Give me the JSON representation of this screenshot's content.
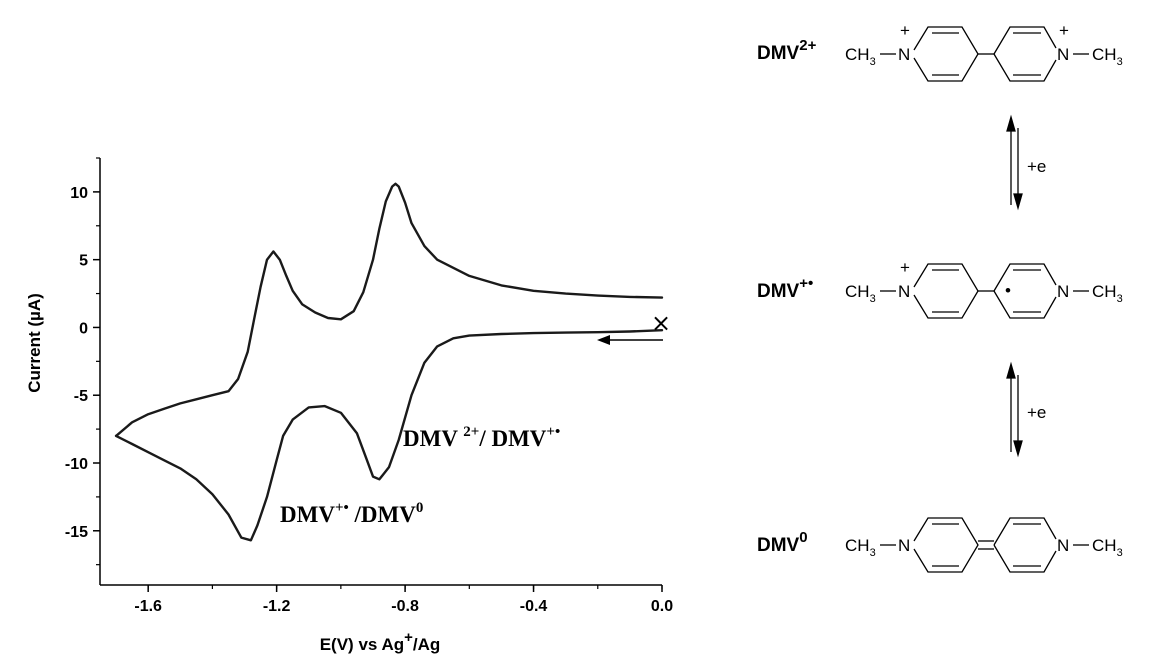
{
  "chart_data": {
    "type": "line",
    "xlabel": "E(V) vs Ag",
    "xlabel_sup": "+",
    "xlabel_tail": "/Ag",
    "ylabel": "Current (µA)",
    "xlim": [
      -1.75,
      0.0
    ],
    "ylim": [
      -19,
      12.5
    ],
    "x_ticks": [
      -1.6,
      -1.2,
      -0.8,
      -0.4,
      0.0
    ],
    "x_tick_labels": [
      "-1.6",
      "-1.2",
      "-0.8",
      "-0.4",
      "0.0"
    ],
    "y_ticks": [
      -15,
      -10,
      -5,
      0,
      5,
      10
    ],
    "y_tick_labels": [
      "-15",
      "-10",
      "-5",
      "0",
      "5",
      "10"
    ],
    "grid": false,
    "series": [
      {
        "x": [
          0.0,
          -0.1,
          -0.2,
          -0.3,
          -0.4,
          -0.5,
          -0.6,
          -0.65,
          -0.7,
          -0.74,
          -0.78,
          -0.82,
          -0.85,
          -0.88,
          -0.9,
          -0.92,
          -0.95,
          -1.0,
          -1.05,
          -1.1,
          -1.15,
          -1.18,
          -1.2,
          -1.23,
          -1.26,
          -1.28,
          -1.31,
          -1.35,
          -1.4,
          -1.45,
          -1.5,
          -1.55,
          -1.6,
          -1.65,
          -1.7
        ],
        "y": [
          -0.2,
          -0.3,
          -0.35,
          -0.38,
          -0.42,
          -0.48,
          -0.6,
          -0.8,
          -1.4,
          -2.6,
          -5.0,
          -8.3,
          -10.3,
          -11.2,
          -11.0,
          -9.7,
          -7.8,
          -6.3,
          -5.8,
          -5.9,
          -6.8,
          -8.0,
          -9.8,
          -12.5,
          -14.6,
          -15.7,
          -15.5,
          -13.8,
          -12.3,
          -11.2,
          -10.4,
          -9.8,
          -9.2,
          -8.6,
          -8.0
        ],
        "color": "#1a1a1a"
      },
      {
        "x": [
          -1.7,
          -1.65,
          -1.6,
          -1.55,
          -1.5,
          -1.45,
          -1.4,
          -1.35,
          -1.32,
          -1.29,
          -1.27,
          -1.25,
          -1.23,
          -1.21,
          -1.19,
          -1.17,
          -1.15,
          -1.12,
          -1.08,
          -1.04,
          -1.0,
          -0.96,
          -0.93,
          -0.9,
          -0.88,
          -0.86,
          -0.84,
          -0.83,
          -0.82,
          -0.8,
          -0.78,
          -0.74,
          -0.7,
          -0.6,
          -0.5,
          -0.4,
          -0.3,
          -0.2,
          -0.1,
          0.0
        ],
        "y": [
          -8.0,
          -7.0,
          -6.4,
          -6.0,
          -5.6,
          -5.3,
          -5.0,
          -4.7,
          -3.8,
          -1.8,
          0.6,
          3.0,
          5.0,
          5.6,
          5.0,
          3.8,
          2.7,
          1.7,
          1.1,
          0.7,
          0.6,
          1.2,
          2.6,
          5.0,
          7.3,
          9.3,
          10.4,
          10.6,
          10.4,
          9.2,
          7.7,
          6.0,
          5.0,
          3.8,
          3.1,
          2.7,
          2.5,
          2.35,
          2.25,
          2.2
        ],
        "color": "#1a1a1a"
      }
    ],
    "annotations": [
      {
        "text": "DMV",
        "sup": "2+",
        "tail": "/ DMV",
        "tail_sup": "+•"
      },
      {
        "text": "DMV",
        "sup": "+•",
        "tail": " /DMV",
        "tail_sup": "0"
      }
    ],
    "start_marker": "×"
  },
  "scheme": {
    "species": [
      {
        "base": "DMV",
        "sup": "2+"
      },
      {
        "base": "DMV",
        "sup": "+•"
      },
      {
        "base": "DMV",
        "sup": "0"
      }
    ],
    "methyl": "CH",
    "methyl_sub": "3",
    "nitrogen": "N",
    "plus": "+",
    "radical": "•",
    "electron": "+e"
  }
}
